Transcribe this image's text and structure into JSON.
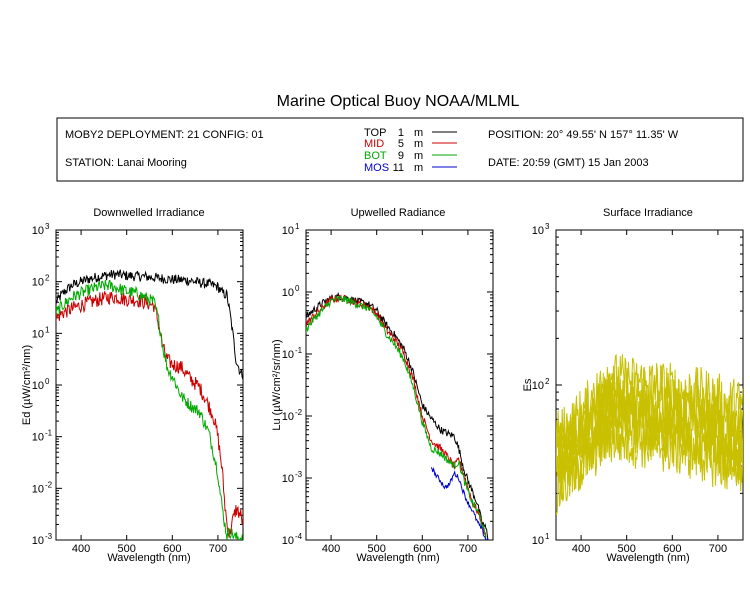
{
  "title": "Marine Optical Buoy NOAA/MLML",
  "info": {
    "deployment": "MOBY2 DEPLOYMENT: 21 CONFIG: 01",
    "station": "STATION: Lanai Mooring",
    "position": "POSITION: 20° 49.55' N   157° 11.35' W",
    "date": "DATE: 20:59 (GMT) 15 Jan 2003"
  },
  "depth_legend": [
    {
      "name": "TOP",
      "depth": "1",
      "unit": "m",
      "color": "#000000"
    },
    {
      "name": "MID",
      "depth": "5",
      "unit": "m",
      "color": "#cc0000"
    },
    {
      "name": "BOT",
      "depth": "9",
      "unit": "m",
      "color": "#00aa00"
    },
    {
      "name": "MOS",
      "depth": "11",
      "unit": "m",
      "color": "#0000cc"
    }
  ],
  "chart_data": [
    {
      "type": "line",
      "title": "Downwelled Irradiance",
      "xlabel": "Wavelength (nm)",
      "ylabel": "Ed  (µW/cm²/nm)",
      "xlim": [
        345,
        755
      ],
      "ylim": [
        0.001,
        1000
      ],
      "yscale": "log",
      "xticks": [
        400,
        500,
        600,
        700
      ],
      "yticks": [
        {
          "value": 0.001,
          "mantissa": "10",
          "exp": "-3"
        },
        {
          "value": 0.01,
          "mantissa": "10",
          "exp": "-2"
        },
        {
          "value": 0.1,
          "mantissa": "10",
          "exp": "-1"
        },
        {
          "value": 1,
          "mantissa": "10",
          "exp": "0"
        },
        {
          "value": 10,
          "mantissa": "10",
          "exp": "1"
        },
        {
          "value": 100,
          "mantissa": "10",
          "exp": "2"
        },
        {
          "value": 1000,
          "mantissa": "10",
          "exp": "3"
        }
      ],
      "series": [
        {
          "name": "TOP",
          "color": "#000000",
          "noise": 0.1,
          "x": [
            345,
            360,
            380,
            400,
            420,
            440,
            460,
            480,
            500,
            520,
            540,
            560,
            580,
            600,
            620,
            640,
            660,
            680,
            700,
            710,
            720,
            730,
            740,
            750,
            755
          ],
          "y": [
            40,
            60,
            85,
            100,
            115,
            125,
            135,
            138,
            130,
            128,
            125,
            120,
            115,
            110,
            108,
            105,
            95,
            90,
            80,
            60,
            55,
            15,
            3,
            1.7,
            1.6
          ]
        },
        {
          "name": "MID",
          "color": "#cc0000",
          "noise": 0.14,
          "x": [
            345,
            360,
            380,
            400,
            420,
            440,
            460,
            480,
            500,
            520,
            540,
            560,
            570,
            580,
            590,
            600,
            620,
            640,
            660,
            680,
            690,
            700,
            710,
            715,
            720,
            725,
            730,
            740,
            750,
            755
          ],
          "y": [
            20,
            25,
            30,
            35,
            40,
            45,
            50,
            50,
            45,
            45,
            40,
            35,
            15,
            5,
            3,
            2.5,
            2.2,
            1.3,
            0.9,
            0.4,
            0.25,
            0.1,
            0.02,
            0.005,
            0.002,
            0.0012,
            0.002,
            0.004,
            0.003,
            0.002
          ]
        },
        {
          "name": "BOT",
          "color": "#00aa00",
          "noise": 0.12,
          "x": [
            345,
            360,
            380,
            400,
            420,
            440,
            460,
            480,
            500,
            520,
            540,
            560,
            570,
            580,
            590,
            600,
            620,
            640,
            660,
            680,
            690,
            700,
            705,
            710,
            715,
            720,
            725,
            740,
            755
          ],
          "y": [
            25,
            35,
            50,
            60,
            70,
            80,
            85,
            75,
            65,
            60,
            50,
            40,
            18,
            5,
            2,
            1.5,
            0.6,
            0.4,
            0.3,
            0.12,
            0.05,
            0.02,
            0.008,
            0.004,
            0.002,
            0.0012,
            0.0015,
            0.0011,
            0.0011
          ]
        }
      ]
    },
    {
      "type": "line",
      "title": "Upwelled Radiance",
      "xlabel": "Wavelength (nm)",
      "ylabel": "Lu  (µW/cm²/sr/nm)",
      "xlim": [
        345,
        755
      ],
      "ylim": [
        0.0001,
        10
      ],
      "yscale": "log",
      "xticks": [
        400,
        500,
        600,
        700
      ],
      "yticks": [
        {
          "value": 0.0001,
          "mantissa": "10",
          "exp": "-4"
        },
        {
          "value": 0.001,
          "mantissa": "10",
          "exp": "-3"
        },
        {
          "value": 0.01,
          "mantissa": "10",
          "exp": "-2"
        },
        {
          "value": 0.1,
          "mantissa": "10",
          "exp": "-1"
        },
        {
          "value": 1,
          "mantissa": "10",
          "exp": "0"
        },
        {
          "value": 10,
          "mantissa": "10",
          "exp": "1"
        }
      ],
      "series": [
        {
          "name": "TOP",
          "color": "#000000",
          "noise": 0.06,
          "x": [
            345,
            360,
            380,
            400,
            420,
            440,
            460,
            480,
            500,
            520,
            540,
            560,
            580,
            600,
            620,
            640,
            660,
            670,
            680,
            690,
            700,
            710,
            720,
            730,
            740,
            745
          ],
          "y": [
            0.4,
            0.5,
            0.65,
            0.8,
            0.85,
            0.78,
            0.7,
            0.65,
            0.5,
            0.3,
            0.2,
            0.12,
            0.05,
            0.015,
            0.009,
            0.006,
            0.005,
            0.0048,
            0.003,
            0.0015,
            0.0009,
            0.0006,
            0.0004,
            0.0002,
            0.00015,
            0.0001
          ]
        },
        {
          "name": "MID",
          "color": "#cc0000",
          "noise": 0.06,
          "x": [
            345,
            360,
            380,
            400,
            420,
            440,
            460,
            480,
            500,
            520,
            540,
            560,
            580,
            600,
            620,
            640,
            660,
            670,
            680,
            690,
            700,
            710,
            720,
            730,
            740
          ],
          "y": [
            0.3,
            0.4,
            0.55,
            0.75,
            0.8,
            0.75,
            0.65,
            0.6,
            0.45,
            0.25,
            0.17,
            0.1,
            0.04,
            0.01,
            0.004,
            0.003,
            0.002,
            0.0015,
            0.002,
            0.0012,
            0.0007,
            0.0004,
            0.0003,
            0.0002,
            0.0001
          ]
        },
        {
          "name": "BOT",
          "color": "#00aa00",
          "noise": 0.06,
          "x": [
            345,
            360,
            380,
            400,
            420,
            440,
            460,
            480,
            500,
            520,
            540,
            560,
            580,
            600,
            620,
            640,
            660,
            670,
            680,
            690,
            700,
            710,
            720,
            730,
            740
          ],
          "y": [
            0.25,
            0.35,
            0.5,
            0.72,
            0.78,
            0.72,
            0.62,
            0.55,
            0.4,
            0.22,
            0.14,
            0.08,
            0.03,
            0.008,
            0.003,
            0.0025,
            0.0018,
            0.0016,
            0.0018,
            0.001,
            0.0006,
            0.0004,
            0.0003,
            0.0002,
            0.0001
          ]
        },
        {
          "name": "MOS",
          "color": "#0000cc",
          "noise": 0.04,
          "x": [
            620,
            630,
            640,
            650,
            660,
            670,
            680,
            690,
            700,
            710,
            720,
            730,
            740,
            745
          ],
          "y": [
            0.0015,
            0.0011,
            0.0009,
            0.0007,
            0.0008,
            0.0012,
            0.001,
            0.0006,
            0.0004,
            0.0003,
            0.0002,
            0.00015,
            0.0001,
            0.0001
          ]
        }
      ]
    },
    {
      "type": "line",
      "title": "Surface Irradiance",
      "xlabel": "Wavelength (nm)",
      "ylabel": "Es",
      "xlim": [
        345,
        755
      ],
      "ylim": [
        10,
        1000
      ],
      "yscale": "log",
      "xticks": [
        400,
        500,
        600,
        700
      ],
      "yticks": [
        {
          "value": 10,
          "mantissa": "10",
          "exp": "1"
        },
        {
          "value": 100,
          "mantissa": "10",
          "exp": "2"
        },
        {
          "value": 1000,
          "mantissa": "10",
          "exp": "3"
        }
      ],
      "series": [
        {
          "color": "#c8c000",
          "noise": 0.18,
          "x": [
            345,
            380,
            420,
            460,
            500,
            560,
            620,
            680,
            720,
            755
          ],
          "y": [
            45,
            55,
            75,
            110,
            105,
            100,
            90,
            85,
            75,
            75
          ]
        },
        {
          "color": "#c8c000",
          "noise": 0.18,
          "x": [
            345,
            380,
            420,
            460,
            500,
            560,
            620,
            680,
            720,
            755
          ],
          "y": [
            38,
            50,
            65,
            90,
            85,
            80,
            72,
            65,
            60,
            60
          ]
        },
        {
          "color": "#c8c000",
          "noise": 0.18,
          "x": [
            345,
            380,
            420,
            460,
            500,
            560,
            620,
            680,
            720,
            755
          ],
          "y": [
            32,
            42,
            55,
            78,
            72,
            68,
            62,
            55,
            50,
            48
          ]
        },
        {
          "color": "#c8c000",
          "noise": 0.18,
          "x": [
            345,
            380,
            420,
            460,
            500,
            560,
            620,
            680,
            720,
            755
          ],
          "y": [
            28,
            35,
            48,
            65,
            62,
            58,
            52,
            46,
            42,
            40
          ]
        },
        {
          "color": "#c8c000",
          "noise": 0.18,
          "x": [
            345,
            380,
            420,
            460,
            500,
            560,
            620,
            680,
            720,
            755
          ],
          "y": [
            24,
            30,
            42,
            55,
            52,
            50,
            45,
            40,
            36,
            35
          ]
        },
        {
          "color": "#c8c000",
          "noise": 0.18,
          "x": [
            345,
            380,
            420,
            460,
            500,
            560,
            620,
            680,
            720,
            755
          ],
          "y": [
            20,
            26,
            35,
            46,
            44,
            42,
            38,
            34,
            30,
            30
          ]
        }
      ]
    }
  ]
}
